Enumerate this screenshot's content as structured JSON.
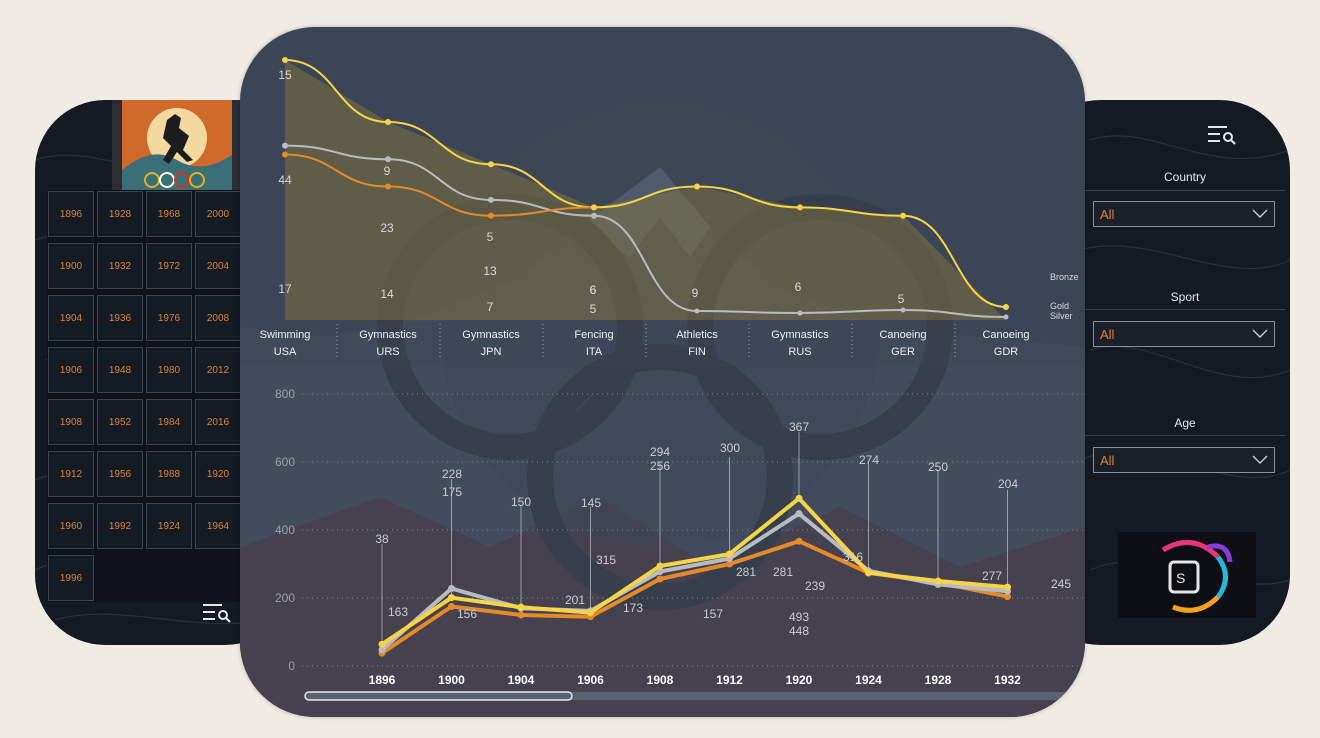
{
  "years": [
    "1896",
    "1928",
    "1968",
    "2000",
    "1900",
    "1932",
    "1972",
    "2004",
    "1904",
    "1936",
    "1976",
    "2008",
    "1906",
    "1948",
    "1980",
    "2012",
    "1908",
    "1952",
    "1984",
    "2016",
    "1912",
    "1956",
    "1988",
    "1920",
    "1960",
    "1992",
    "1924",
    "1964",
    "1996"
  ],
  "filters": {
    "country": {
      "label": "Country",
      "value": "All"
    },
    "sport": {
      "label": "Sport",
      "value": "All"
    },
    "age": {
      "label": "Age",
      "value": "All"
    }
  },
  "colors": {
    "gold": "#f5d547",
    "silver": "#b8bcc2",
    "bronze": "#e58a2a",
    "panel": "#151922",
    "accent": "#d8843a"
  },
  "icons": [
    "filter-search-icon",
    "olympic-runner-logo",
    "sd-logo"
  ],
  "chart_data": [
    {
      "type": "line",
      "categories": [
        [
          "Swimming",
          "USA"
        ],
        [
          "Gymnastics",
          "URS"
        ],
        [
          "Gymnastics",
          "JPN"
        ],
        [
          "Fencing",
          "ITA"
        ],
        [
          "Athletics",
          "FIN"
        ],
        [
          "Gymnastics",
          "RUS"
        ],
        [
          "Canoeing",
          "GER"
        ],
        [
          "Canoeing",
          "GDR"
        ]
      ],
      "series": [
        {
          "name": "Bronze",
          "values": [
            15,
            9,
            5,
            6,
            null,
            6,
            null,
            null
          ],
          "color": "#e58a2a"
        },
        {
          "name": "Gold",
          "values": [
            44,
            23,
            13,
            6,
            9,
            6,
            5,
            null
          ],
          "color": "#f5d547"
        },
        {
          "name": "Silver",
          "values": [
            17,
            14,
            7,
            5,
            null,
            null,
            null,
            null
          ],
          "color": "#b8bcc2"
        }
      ],
      "legend_position": "right"
    },
    {
      "type": "line",
      "x": [
        "1896",
        "1900",
        "1904",
        "1906",
        "1908",
        "1912",
        "1920",
        "1924",
        "1928",
        "1932"
      ],
      "ylim": [
        0,
        800
      ],
      "yticks": [
        "0",
        "200",
        "400",
        "600",
        "800"
      ],
      "grid": true,
      "series": [
        {
          "name": "Gold",
          "values": [
            64,
            201,
            173,
            157,
            294,
            329,
            493,
            274,
            250,
            232
          ],
          "color": "#f5d547"
        },
        {
          "name": "Silver",
          "values": [
            48,
            228,
            170,
            162,
            278,
            316,
            448,
            280,
            240,
            220
          ],
          "color": "#b8bcc2"
        },
        {
          "name": "Bronze",
          "values": [
            38,
            175,
            150,
            145,
            256,
            300,
            367,
            274,
            245,
            204
          ],
          "color": "#e58a2a"
        }
      ],
      "data_labels": [
        "38",
        "163",
        "228",
        "175",
        "156",
        "150",
        "201",
        "145",
        "173",
        "157",
        "315",
        "294",
        "256",
        "300",
        "281",
        "367",
        "281",
        "493",
        "448",
        "239",
        "316",
        "274",
        "250",
        "277",
        "204",
        "245"
      ]
    }
  ]
}
